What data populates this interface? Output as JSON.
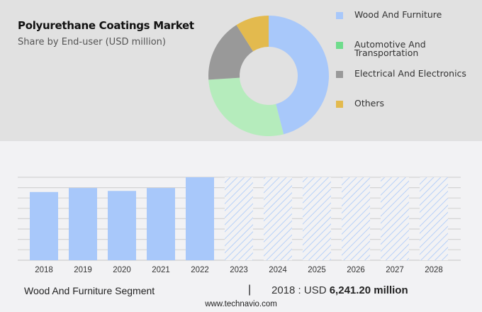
{
  "header": {
    "title": "Polyurethane Coatings Market",
    "subtitle": "Share by End-user (USD million)"
  },
  "legend": [
    {
      "label": "Wood And Furniture",
      "color": "#a8c8fa"
    },
    {
      "label": "Automotive And\nTransportation",
      "label_line1": "Automotive And",
      "label_line2": "Transportation",
      "color": "#6fdc8c"
    },
    {
      "label": "Electrical And Electronics",
      "color": "#999999"
    },
    {
      "label": "Others",
      "color": "#e3ba4e"
    }
  ],
  "footer": {
    "segment": "Wood And Furniture Segment",
    "separator": "|",
    "year_prefix": "2018 : USD ",
    "value": "6,241.20 million",
    "source": "www.technavio.com"
  },
  "chart_data": [
    {
      "type": "pie",
      "title": "Polyurethane Coatings Market",
      "subtitle": "Share by End-user (USD million)",
      "donut": true,
      "categories": [
        "Wood And Furniture",
        "Automotive And Transportation",
        "Electrical And Electronics",
        "Others"
      ],
      "values": [
        46,
        28,
        17,
        9
      ],
      "colors": [
        "#a8c8fa",
        "#b5ecbc",
        "#999999",
        "#e3ba4e"
      ],
      "legend_position": "right"
    },
    {
      "type": "bar",
      "title": "Wood And Furniture Segment",
      "categories": [
        "2018",
        "2019",
        "2020",
        "2021",
        "2022",
        "2023",
        "2024",
        "2025",
        "2026",
        "2027",
        "2028"
      ],
      "values": [
        6241.2,
        6610,
        6340,
        6610,
        7590,
        null,
        null,
        null,
        null,
        null,
        null
      ],
      "forecast": [
        false,
        false,
        false,
        false,
        false,
        true,
        true,
        true,
        true,
        true,
        true
      ],
      "forecast_bar_height_note": "forecast years shown as full-height hatched placeholder bars",
      "xlabel": "",
      "ylabel": "",
      "grid": true,
      "annotation": "2018 : USD 6,241.20 million"
    }
  ]
}
